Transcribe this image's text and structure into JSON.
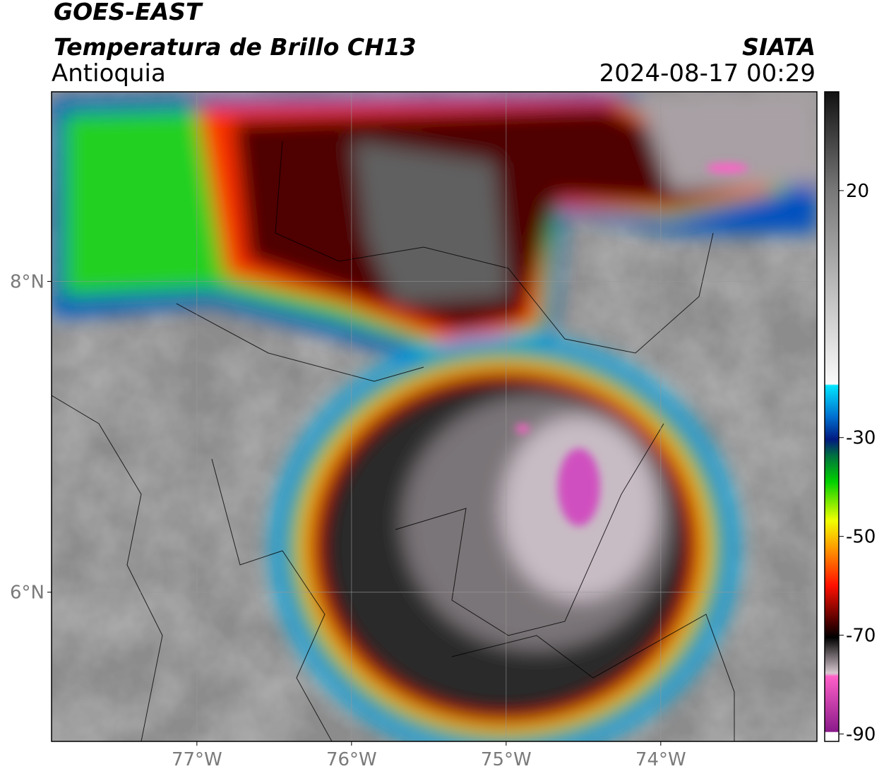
{
  "header": {
    "title": "GOES-EAST",
    "subtitle": "Temperatura de Brillo CH13",
    "source": "SIATA",
    "region": "Antioquia",
    "timestamp": "2024-08-17 00:29"
  },
  "map": {
    "lonlim": [
      -77.94,
      -72.99
    ],
    "latlim": [
      5.04,
      9.22
    ],
    "lonticks": [
      {
        "value": -77,
        "label": "77°W"
      },
      {
        "value": -76,
        "label": "76°W"
      },
      {
        "value": -75,
        "label": "75°W"
      },
      {
        "value": -74,
        "label": "74°W"
      }
    ],
    "latticks": [
      {
        "value": 8,
        "label": "8°N"
      },
      {
        "value": 6,
        "label": "6°N"
      }
    ],
    "grid": true
  },
  "colorbar": {
    "lim": [
      -91.5,
      40
    ],
    "ticks": [
      20,
      -30,
      -50,
      -70,
      -90
    ]
  }
}
